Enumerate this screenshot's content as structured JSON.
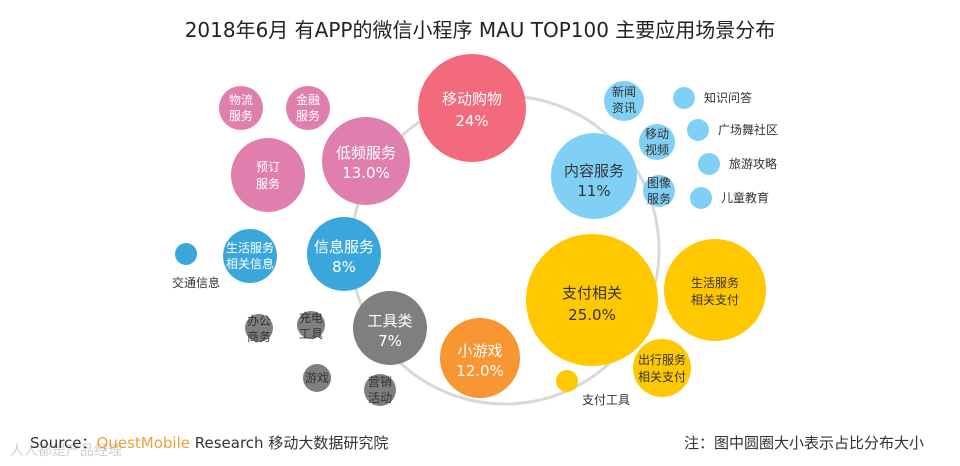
{
  "title": "2018年6月 有APP的微信小程序 MAU TOP100 主要应用场景分布",
  "footer": {
    "source_prefix": "Source：",
    "source_brand": "QuestMobile",
    "source_suffix": " Research 移动大数据研究院",
    "note": "注：图中圆圈大小表示占比分布大小",
    "watermark": "人人都是产品经理"
  },
  "colors": {
    "shopping": "#f26a7c",
    "lowfreq": "#e07fae",
    "content": "#7fd0f4",
    "info": "#3aa7dc",
    "tools": "#7f7f7f",
    "games": "#f79632",
    "payment": "#ffc800",
    "ring": "#d9d9d9"
  },
  "main": {
    "shopping": {
      "line1": "移动购物",
      "line2": "24%"
    },
    "lowfreq": {
      "line1": "低频服务",
      "line2": "13.0%"
    },
    "content": {
      "line1": "内容服务",
      "line2": "11%"
    },
    "info": {
      "line1": "信息服务",
      "line2": "8%"
    },
    "tools": {
      "line1": "工具类",
      "line2": "7%"
    },
    "games": {
      "line1": "小游戏",
      "line2": "12.0%"
    },
    "payment": {
      "line1": "支付相关",
      "line2": "25.0%"
    }
  },
  "sub": {
    "logistics": {
      "l1": "物流",
      "l2": "服务"
    },
    "finance": {
      "l1": "金融",
      "l2": "服务"
    },
    "booking": {
      "l1": "预订",
      "l2": "服务"
    },
    "news": {
      "l1": "新闻",
      "l2": "资讯"
    },
    "mobile_video": {
      "l1": "移动",
      "l2": "视频"
    },
    "image_service": {
      "l1": "图像",
      "l2": "服务"
    },
    "knowledge_qa": "知识问答",
    "square_dance": "广场舞社区",
    "travel": "旅游攻略",
    "kids_edu": "儿童教育",
    "life_info": {
      "l1": "生活服务",
      "l2": "相关信息"
    },
    "traffic": "交通信息",
    "office": {
      "l1": "办公",
      "l2": "商务"
    },
    "charging": {
      "l1": "充电",
      "l2": "工具"
    },
    "game_small": "游戏",
    "marketing": {
      "l1": "营销",
      "l2": "活动"
    },
    "life_pay": {
      "l1": "生活服务",
      "l2": "相关支付"
    },
    "travel_pay": {
      "l1": "出行服务",
      "l2": "相关支付"
    },
    "pay_tools": "支付工具"
  }
}
